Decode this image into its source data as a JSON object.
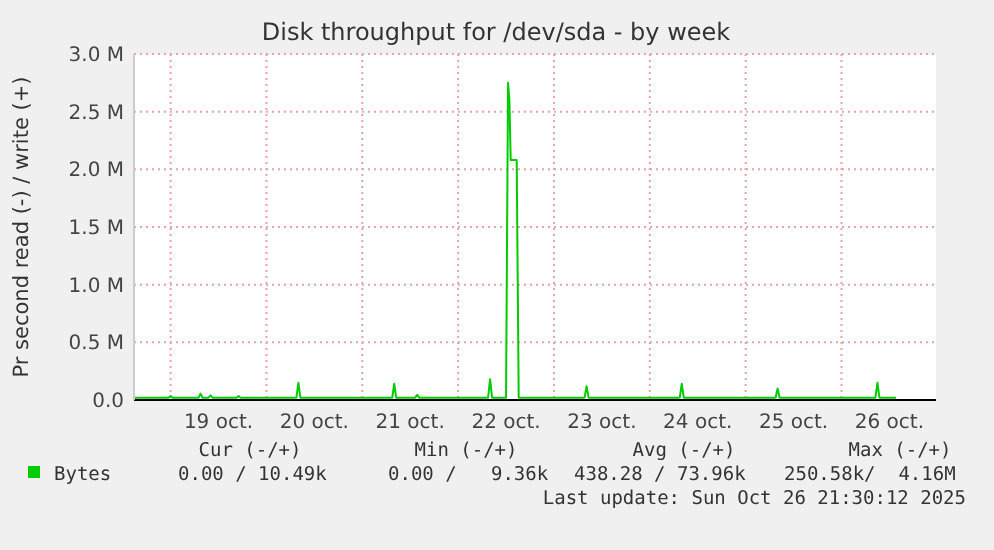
{
  "chart_data": {
    "type": "line",
    "title": "Disk throughput for /dev/sda - by week",
    "ylabel": "Pr second read (-) / write (+)",
    "x": [
      "2025-10-18T14:50",
      "2025-10-18T23:30",
      "2025-10-19T00:00",
      "2025-10-19T00:30",
      "2025-10-19T07:00",
      "2025-10-19T07:30",
      "2025-10-19T08:00",
      "2025-10-19T09:30",
      "2025-10-19T10:00",
      "2025-10-19T10:30",
      "2025-10-19T16:30",
      "2025-10-19T17:00",
      "2025-10-19T17:30",
      "2025-10-20T07:30",
      "2025-10-20T08:00",
      "2025-10-20T08:30",
      "2025-10-21T07:30",
      "2025-10-21T08:00",
      "2025-10-21T08:30",
      "2025-10-21T13:15",
      "2025-10-21T13:45",
      "2025-10-21T14:15",
      "2025-10-22T07:30",
      "2025-10-22T08:00",
      "2025-10-22T08:30",
      "2025-10-22T12:00",
      "2025-10-22T12:30",
      "2025-10-22T12:50",
      "2025-10-22T13:10",
      "2025-10-22T13:30",
      "2025-10-22T14:40",
      "2025-10-22T15:10",
      "2025-10-23T07:40",
      "2025-10-23T08:10",
      "2025-10-23T08:40",
      "2025-10-24T07:30",
      "2025-10-24T08:00",
      "2025-10-24T08:30",
      "2025-10-25T07:30",
      "2025-10-25T08:00",
      "2025-10-25T08:30",
      "2025-10-26T08:30",
      "2025-10-26T09:00",
      "2025-10-26T09:30",
      "2025-10-26T13:40"
    ],
    "series": [
      {
        "name": "Bytes",
        "color": "#00cc00",
        "values": [
          20000,
          20000,
          35000,
          20000,
          20000,
          55000,
          20000,
          20000,
          40000,
          20000,
          20000,
          35000,
          20000,
          20000,
          150000,
          20000,
          20000,
          140000,
          20000,
          20000,
          45000,
          20000,
          20000,
          180000,
          20000,
          20000,
          2750000,
          2600000,
          2080000,
          2080000,
          2080000,
          20000,
          20000,
          120000,
          20000,
          20000,
          140000,
          20000,
          20000,
          100000,
          20000,
          20000,
          150000,
          20000,
          20000
        ]
      }
    ],
    "xlim": [
      "2025-10-18T14:50",
      "2025-10-26T23:40"
    ],
    "xticks": [
      {
        "value": "2025-10-19T00:00",
        "label": null
      },
      {
        "value": "2025-10-19T12:00",
        "label": "19 oct."
      },
      {
        "value": "2025-10-20T00:00",
        "label": null
      },
      {
        "value": "2025-10-20T12:00",
        "label": "20 oct."
      },
      {
        "value": "2025-10-21T00:00",
        "label": null
      },
      {
        "value": "2025-10-21T12:00",
        "label": "21 oct."
      },
      {
        "value": "2025-10-22T00:00",
        "label": null
      },
      {
        "value": "2025-10-22T12:00",
        "label": "22 oct."
      },
      {
        "value": "2025-10-23T00:00",
        "label": null
      },
      {
        "value": "2025-10-23T12:00",
        "label": "23 oct."
      },
      {
        "value": "2025-10-24T00:00",
        "label": null
      },
      {
        "value": "2025-10-24T12:00",
        "label": "24 oct."
      },
      {
        "value": "2025-10-25T00:00",
        "label": null
      },
      {
        "value": "2025-10-25T12:00",
        "label": "25 oct."
      },
      {
        "value": "2025-10-26T00:00",
        "label": null
      },
      {
        "value": "2025-10-26T12:00",
        "label": "26 oct."
      }
    ],
    "ylim": [
      0,
      3000000
    ],
    "yticks": [
      {
        "value": 0,
        "label": "0.0"
      },
      {
        "value": 500000,
        "label": "0.5 M"
      },
      {
        "value": 1000000,
        "label": "1.0 M"
      },
      {
        "value": 1500000,
        "label": "1.5 M"
      },
      {
        "value": 2000000,
        "label": "2.0 M"
      },
      {
        "value": 2500000,
        "label": "2.5 M"
      },
      {
        "value": 3000000,
        "label": "3.0 M"
      }
    ],
    "grid": true,
    "legend": "bottom left",
    "marker": "none",
    "line_style": "solid",
    "annotations": [
      "Cur (-/+)",
      "Min (-/+)",
      "Avg (-/+)",
      "Max (-/+)",
      "0.00 / 10.49k",
      "0.00 /   9.36k",
      "438.28 / 73.96k",
      "250.58k/  4.16M",
      "Last update: Sun Oct 26 21:30:12 2025"
    ]
  }
}
